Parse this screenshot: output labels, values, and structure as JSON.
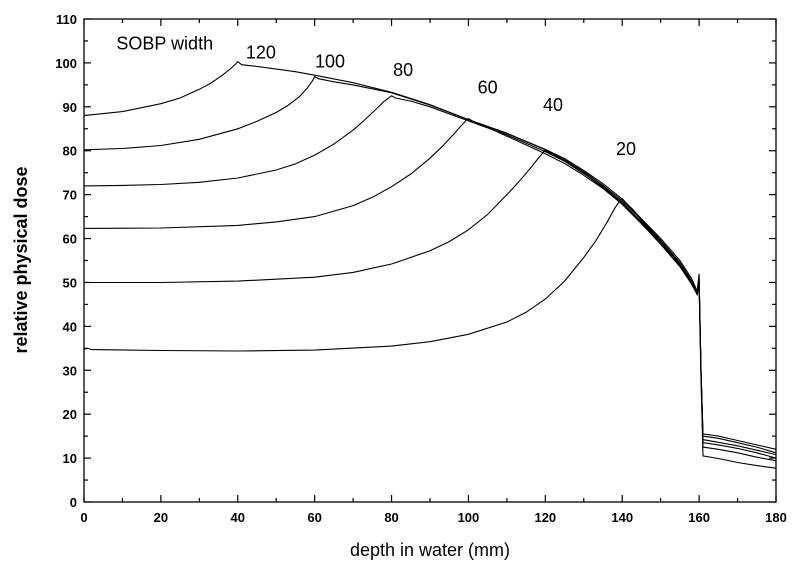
{
  "chart_data": {
    "type": "line",
    "title": "",
    "xlabel": "depth in water (mm)",
    "ylabel": "relative physical dose",
    "xlim": [
      0,
      180
    ],
    "ylim": [
      0,
      110
    ],
    "x_ticks": [
      0,
      20,
      40,
      60,
      80,
      100,
      120,
      140,
      160,
      180
    ],
    "y_ticks": [
      0,
      10,
      20,
      30,
      40,
      50,
      60,
      70,
      80,
      90,
      100,
      110
    ],
    "grid": false,
    "legend": "none",
    "annotations": [
      {
        "text": "SOBP width",
        "x": 21,
        "y": 103
      },
      {
        "text": "120",
        "x": 46,
        "y": 101
      },
      {
        "text": "100",
        "x": 64,
        "y": 99
      },
      {
        "text": "80",
        "x": 83,
        "y": 97
      },
      {
        "text": "60",
        "x": 105,
        "y": 93
      },
      {
        "text": "40",
        "x": 122,
        "y": 89
      },
      {
        "text": "20",
        "x": 141,
        "y": 79
      }
    ],
    "series": [
      {
        "sobp_width": 120,
        "x": [
          0,
          10,
          20,
          25,
          30,
          33,
          36,
          38,
          39.5,
          40,
          41,
          45,
          50,
          55,
          60,
          70,
          80,
          90,
          100,
          110,
          120,
          125,
          130,
          135,
          140,
          145,
          150,
          155,
          158,
          159.5,
          160,
          160.5,
          161,
          165,
          170,
          175,
          180
        ],
        "y": [
          88,
          88.9,
          90.7,
          92,
          94,
          95.4,
          97.2,
          98.6,
          99.8,
          100.3,
          99.6,
          99.2,
          98.6,
          98,
          97.2,
          95.5,
          93.3,
          90.5,
          87.1,
          84,
          80.3,
          78.2,
          75.5,
          72.5,
          69,
          64.5,
          60,
          55,
          51,
          48,
          52,
          30,
          15.5,
          15,
          14,
          13,
          12
        ]
      },
      {
        "sobp_width": 100,
        "x": [
          0,
          10,
          20,
          30,
          40,
          45,
          50,
          53,
          56,
          58,
          59.5,
          60,
          61,
          65,
          70,
          80,
          90,
          100,
          110,
          120,
          125,
          130,
          135,
          140,
          145,
          150,
          155,
          158,
          159.5,
          160,
          160.5,
          161,
          165,
          170,
          175,
          180
        ],
        "y": [
          80.2,
          80.5,
          81.2,
          82.6,
          85,
          86.7,
          88.7,
          90.3,
          92.3,
          94.2,
          96,
          96.9,
          96.4,
          95.7,
          95,
          93.2,
          90.4,
          87.1,
          83.9,
          80.2,
          78,
          75.2,
          72.1,
          68.6,
          64.3,
          59.6,
          54.5,
          50.5,
          48,
          51,
          30,
          15,
          14.5,
          13.5,
          12.5,
          11.2
        ]
      },
      {
        "sobp_width": 80,
        "x": [
          0,
          10,
          20,
          30,
          40,
          50,
          55,
          60,
          65,
          70,
          73,
          76,
          78,
          79.5,
          80,
          81,
          85,
          90,
          100,
          110,
          120,
          125,
          130,
          135,
          140,
          145,
          150,
          155,
          158,
          159.5,
          160,
          160.5,
          161,
          165,
          170,
          175,
          180
        ],
        "y": [
          72,
          72.1,
          72.3,
          72.8,
          73.8,
          75.6,
          77,
          79,
          81.5,
          84.7,
          87,
          89.5,
          91.2,
          92.2,
          92.5,
          92,
          91.3,
          90,
          86.8,
          83.6,
          79.8,
          77.6,
          74.8,
          71.8,
          68.2,
          63.8,
          59.1,
          54,
          50,
          47.5,
          50.5,
          30,
          14.2,
          13.6,
          12.8,
          11.8,
          10.8
        ]
      },
      {
        "sobp_width": 60,
        "x": [
          0,
          20,
          40,
          50,
          60,
          70,
          75,
          80,
          85,
          90,
          93,
          96,
          98,
          99.5,
          100,
          101,
          105,
          110,
          120,
          125,
          130,
          135,
          140,
          145,
          150,
          155,
          158,
          159.5,
          160,
          160.5,
          161,
          165,
          170,
          175,
          180
        ],
        "y": [
          62.3,
          62.4,
          63,
          63.8,
          65,
          67.5,
          69.4,
          71.8,
          74.7,
          78.3,
          80.8,
          83.6,
          85.6,
          87,
          87.3,
          86.8,
          85.3,
          83.3,
          79.3,
          77.1,
          74.4,
          71.4,
          67.8,
          63.4,
          58.7,
          53.6,
          49.7,
          47.3,
          50,
          30,
          13.5,
          13,
          12.2,
          11.2,
          10
        ]
      },
      {
        "sobp_width": 40,
        "x": [
          0,
          20,
          40,
          60,
          70,
          80,
          90,
          95,
          100,
          105,
          110,
          113,
          116,
          118,
          119.5,
          120,
          121,
          125,
          130,
          135,
          140,
          145,
          150,
          155,
          158,
          159.5,
          160,
          160.5,
          161,
          165,
          170,
          175,
          180
        ],
        "y": [
          50,
          50,
          50.3,
          51.2,
          52.3,
          54.2,
          57.2,
          59.3,
          62,
          65.5,
          70,
          72.8,
          75.9,
          78.1,
          79.7,
          80.1,
          79.5,
          77.7,
          74.9,
          71.6,
          68,
          63.6,
          58.9,
          53.8,
          49.9,
          47.2,
          49.5,
          30,
          12.5,
          12,
          11.2,
          10.2,
          9.4
        ]
      },
      {
        "sobp_width": 20,
        "x": [
          0,
          1,
          2,
          20,
          40,
          60,
          80,
          90,
          100,
          110,
          115,
          120,
          125,
          130,
          133,
          136,
          138,
          139.5,
          140,
          141,
          143,
          145,
          150,
          155,
          158,
          159.5,
          160,
          160.5,
          161,
          165,
          170,
          175,
          180
        ],
        "y": [
          34.8,
          35,
          34.7,
          34.5,
          34.4,
          34.6,
          35.5,
          36.5,
          38.2,
          41,
          43.2,
          46.2,
          50.3,
          55.7,
          59.3,
          63.6,
          66.8,
          68.8,
          69.1,
          68.1,
          66.4,
          64.1,
          59.3,
          54.3,
          50.4,
          47.6,
          49,
          28,
          10.5,
          9.9,
          9,
          8.3,
          7.7
        ]
      }
    ]
  }
}
